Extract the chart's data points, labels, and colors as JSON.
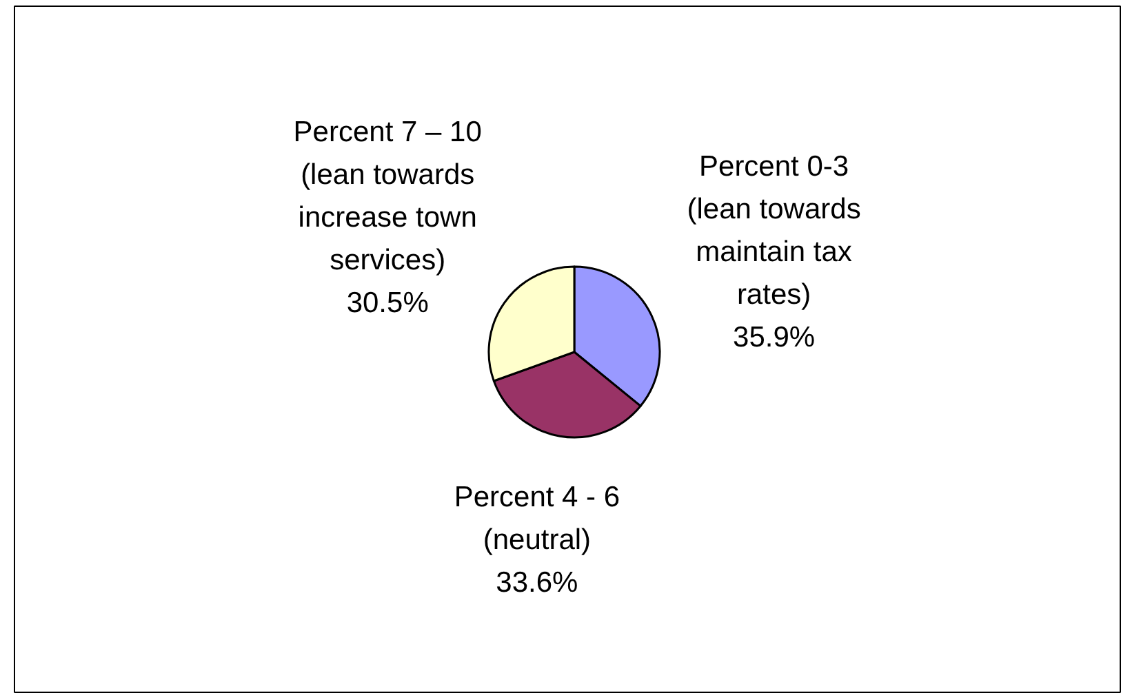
{
  "chart_data": {
    "type": "pie",
    "categories": [
      "Percent 0-3 (lean towards maintain tax rates)",
      "Percent 4 - 6 (neutral)",
      "Percent 7 – 10 (lean towards increase town services)"
    ],
    "values": [
      35.9,
      33.6,
      30.5
    ],
    "colors": [
      "#9999ff",
      "#993366",
      "#ffffcc"
    ],
    "value_labels": [
      "35.9%",
      "33.6%",
      "30.5%"
    ]
  }
}
